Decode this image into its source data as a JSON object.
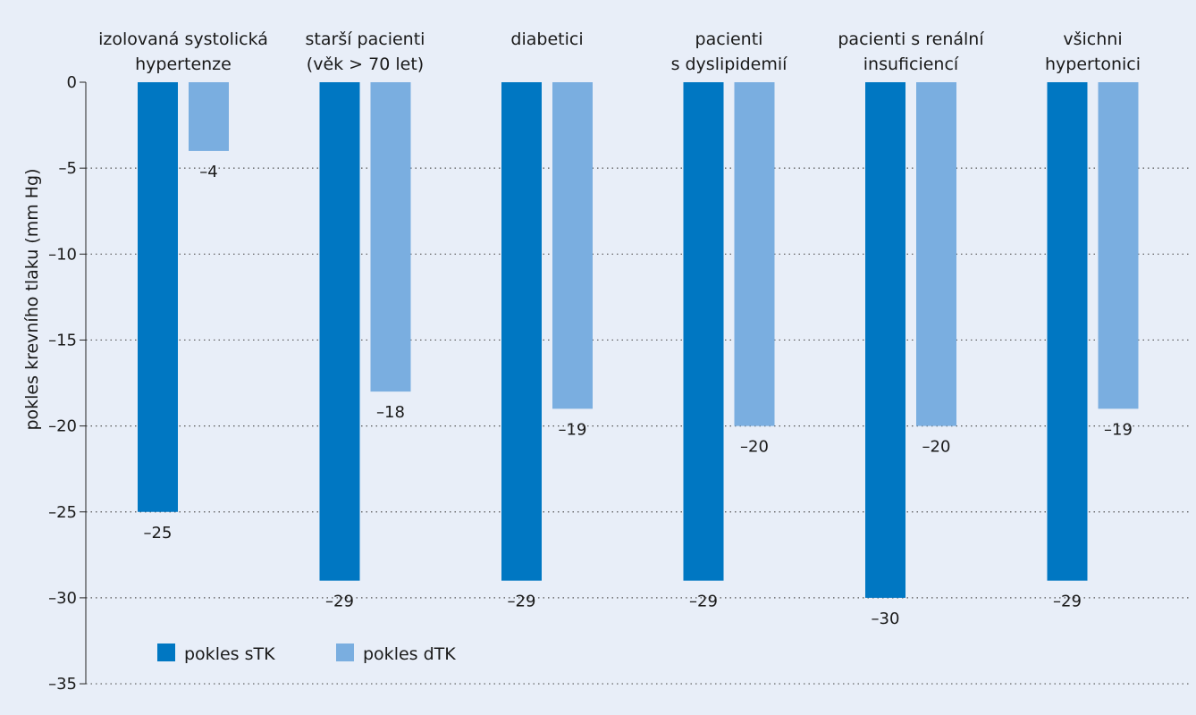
{
  "chart_data": {
    "type": "bar",
    "categories": [
      [
        "izolovaná systolická",
        "hypertenze"
      ],
      [
        "starší pacienti",
        "(věk > 70 let)"
      ],
      [
        "diabetici"
      ],
      [
        "pacienti",
        "s dyslipidemií"
      ],
      [
        "pacienti s renální",
        "insuficiencí"
      ],
      [
        "všichni",
        "hypertonici"
      ]
    ],
    "series": [
      {
        "name": "pokles sTK",
        "color": "#0077c2",
        "values": [
          -25,
          -29,
          -29,
          -29,
          -30,
          -29
        ]
      },
      {
        "name": "pokles dTK",
        "color": "#7aaee0",
        "values": [
          -4,
          -18,
          -19,
          -20,
          -20,
          -19
        ]
      }
    ],
    "data_labels": {
      "pokles sTK": [
        "–25",
        "–29",
        "–29",
        "–29",
        "–30",
        "–29"
      ],
      "pokles dTK": [
        "–4",
        "–18",
        "–19",
        "–20",
        "–20",
        "–19"
      ]
    },
    "ylabel": "pokles krevního tlaku (mm Hg)",
    "ylim": [
      -35,
      0
    ],
    "yticks": [
      0,
      -5,
      -10,
      -15,
      -20,
      -25,
      -30,
      -35
    ],
    "ytick_labels": [
      "0",
      "–5",
      "–10",
      "–15",
      "–20",
      "–25",
      "–30",
      "–35"
    ],
    "grid": true,
    "legend_position": "bottom-left"
  }
}
